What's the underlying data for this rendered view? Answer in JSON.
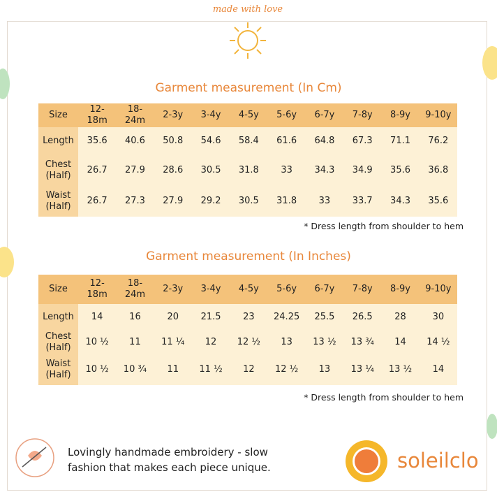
{
  "badge": "made with love",
  "tables": [
    {
      "title": "Garment measurement (In Cm)",
      "header": [
        "Size",
        "12-18m",
        "18-24m",
        "2-3y",
        "3-4y",
        "4-5y",
        "5-6y",
        "6-7y",
        "7-8y",
        "8-9y",
        "9-10y"
      ],
      "rows": [
        [
          "Length",
          "35.6",
          "40.6",
          "50.8",
          "54.6",
          "58.4",
          "61.6",
          "64.8",
          "67.3",
          "71.1",
          "76.2"
        ],
        [
          "Chest (Half)",
          "26.7",
          "27.9",
          "28.6",
          "30.5",
          "31.8",
          "33",
          "34.3",
          "34.9",
          "35.6",
          "36.8"
        ],
        [
          "Waist (Half)",
          "26.7",
          "27.3",
          "27.9",
          "29.2",
          "30.5",
          "31.8",
          "33",
          "33.7",
          "34.3",
          "35.6"
        ]
      ],
      "note": "* Dress length from shoulder to hem"
    },
    {
      "title": "Garment measurement (In Inches)",
      "header": [
        "Size",
        "12-18m",
        "18-24m",
        "2-3y",
        "3-4y",
        "4-5y",
        "5-6y",
        "6-7y",
        "7-8y",
        "8-9y",
        "9-10y"
      ],
      "rows": [
        [
          "Length",
          "14",
          "16",
          "20",
          "21.5",
          "23",
          "24.25",
          "25.5",
          "26.5",
          "28",
          "30"
        ],
        [
          "Chest (Half)",
          "10 ½",
          "11",
          "11 ¼",
          "12",
          "12 ½",
          "13",
          "13 ½",
          "13 ¾",
          "14",
          "14 ½"
        ],
        [
          "Waist (Half)",
          "10 ½",
          "10 ¾",
          "11",
          "11 ½",
          "12",
          "12 ½",
          "13",
          "13 ¼",
          "13 ½",
          "14"
        ]
      ],
      "note": "* Dress length from shoulder to hem"
    }
  ],
  "footer": {
    "text": "Lovingly handmade embroidery - slow fashion that makes each piece unique.",
    "brand": "soleilclo"
  }
}
